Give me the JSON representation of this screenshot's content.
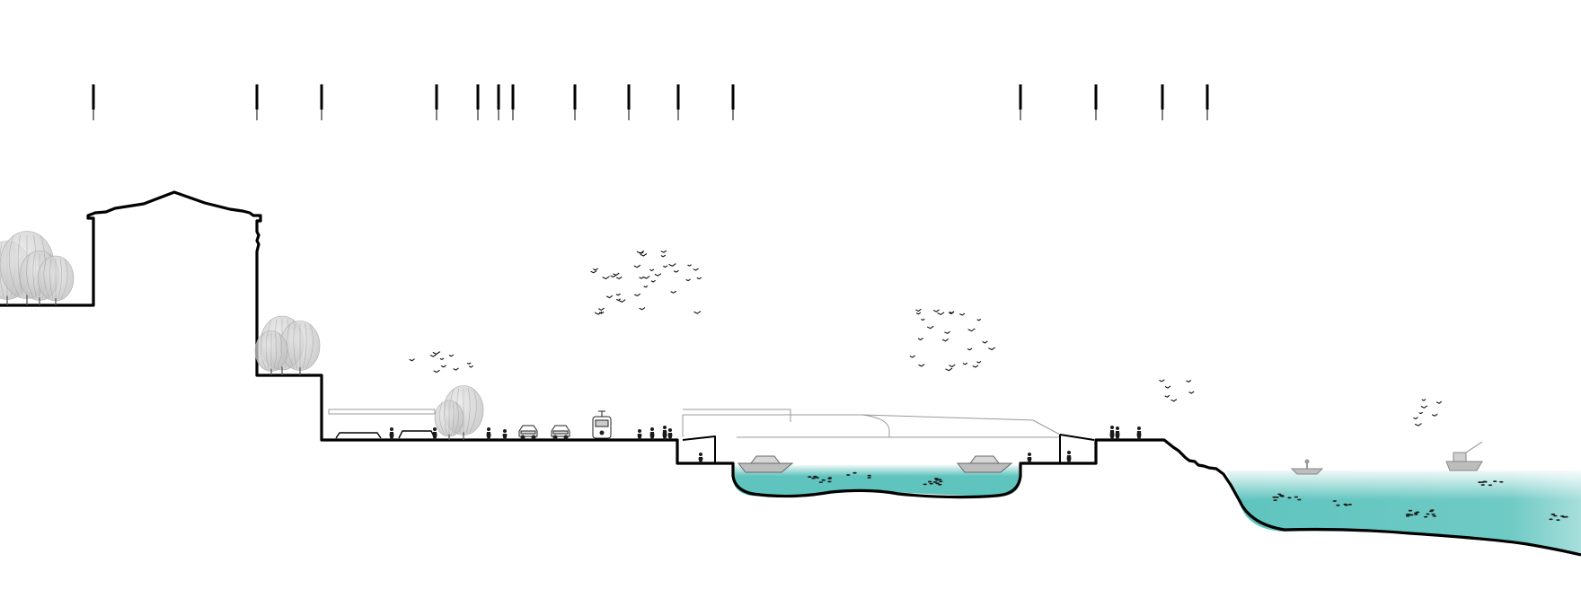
{
  "colors": {
    "background": "#ffffff",
    "ground_line": "#000000",
    "water": "#5fc4be",
    "tree_fill": "#c8c8c8",
    "figure": "#1a1a1a",
    "building_ghost": "#9a9a9a"
  },
  "section_markers": {
    "count": 15
  },
  "icons": [
    "tree-icon",
    "bird-icon",
    "person-icon",
    "car-icon",
    "tram-icon",
    "boat-icon",
    "fish-icon"
  ]
}
